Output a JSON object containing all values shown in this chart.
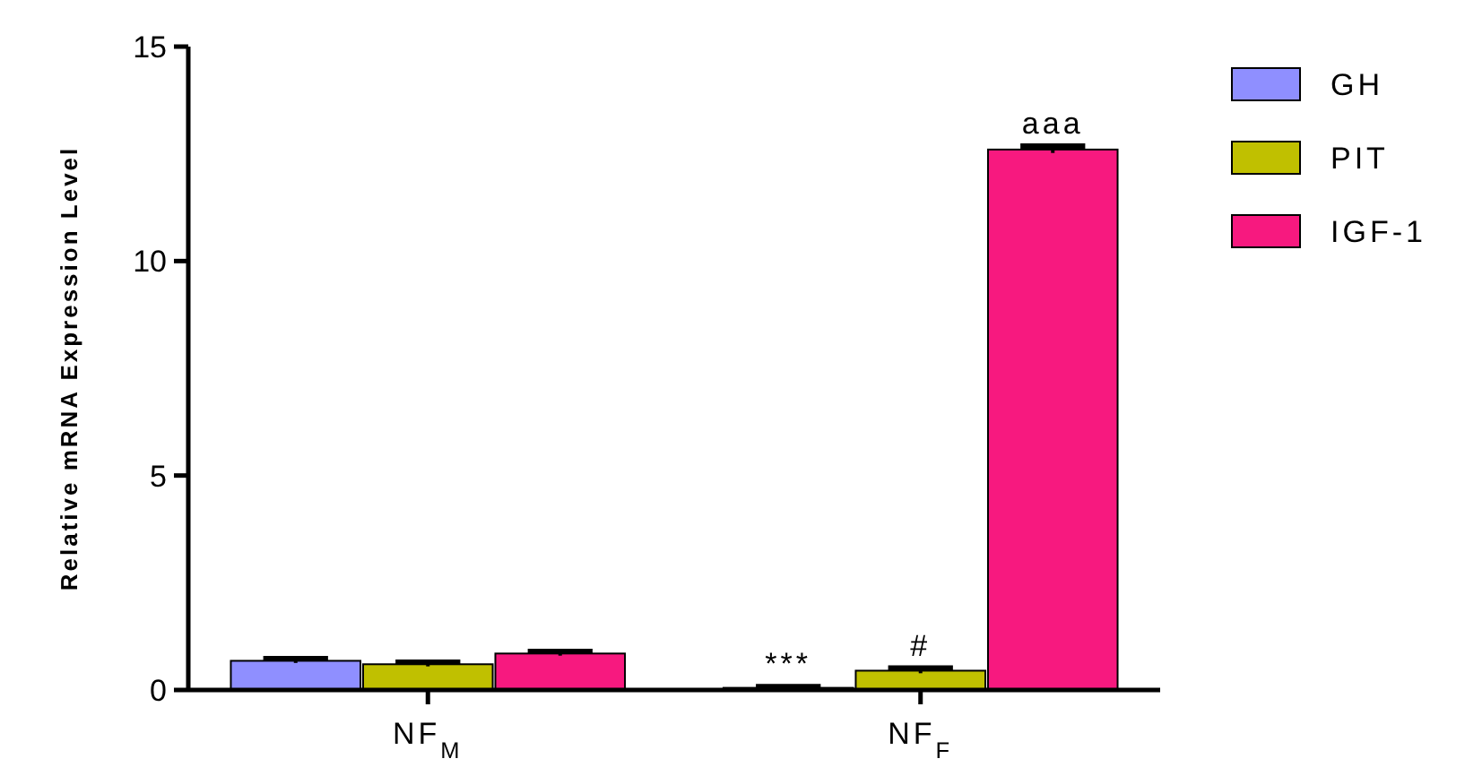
{
  "chart_data": {
    "type": "bar",
    "ylabel": "Relative mRNA Expression Level",
    "categories": [
      "NF$_{M}$",
      "NF$_{F}$"
    ],
    "series": [
      {
        "name": "GH",
        "color": "#8f8fff",
        "values": [
          0.68,
          0.05
        ],
        "errors": [
          0.05,
          0.03
        ],
        "value_labels": [
          null,
          "***"
        ]
      },
      {
        "name": "PIT",
        "color": "#c0c000",
        "values": [
          0.6,
          0.45
        ],
        "errors": [
          0.05,
          0.06
        ],
        "value_labels": [
          null,
          "#"
        ]
      },
      {
        "name": "IGF-1",
        "color": "#f7197f",
        "values": [
          0.85,
          12.6
        ],
        "errors": [
          0.05,
          0.08
        ],
        "value_labels": [
          null,
          "aaa"
        ]
      }
    ],
    "ylim": [
      0,
      15
    ],
    "yticks": [
      0,
      5,
      10,
      15
    ],
    "grid": false,
    "legend": "top right"
  }
}
